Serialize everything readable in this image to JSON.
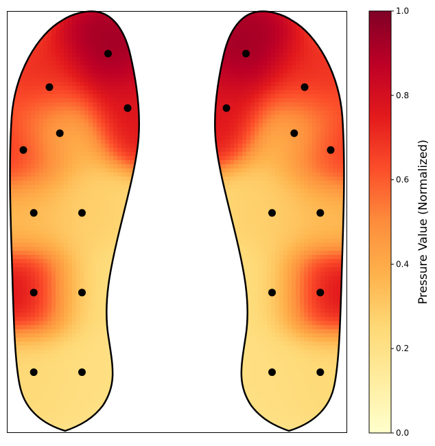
{
  "chart_data": {
    "type": "heatmap",
    "title": "",
    "colorbar": {
      "label": "Pressure Value (Normalized)",
      "ticks": [
        "0.0",
        "0.2",
        "0.4",
        "0.6",
        "0.8",
        "1.0"
      ],
      "range": [
        0,
        1
      ],
      "colormap": [
        "#ffffcc",
        "#ffeda0",
        "#fed976",
        "#feb24c",
        "#fd8d3c",
        "#fc4e2a",
        "#e31a1c",
        "#bd0026",
        "#800026"
      ]
    },
    "sensor_color": "#000000",
    "feet": [
      {
        "name": "left",
        "sensors": [
          {
            "x": 0.75,
            "y": 0.1,
            "value": 0.95
          },
          {
            "x": 0.3,
            "y": 0.18,
            "value": 0.72
          },
          {
            "x": 0.9,
            "y": 0.23,
            "value": 0.78
          },
          {
            "x": 0.38,
            "y": 0.29,
            "value": 0.32
          },
          {
            "x": 0.1,
            "y": 0.33,
            "value": 0.72
          },
          {
            "x": 0.18,
            "y": 0.48,
            "value": 0.35
          },
          {
            "x": 0.55,
            "y": 0.48,
            "value": 0.28
          },
          {
            "x": 0.18,
            "y": 0.67,
            "value": 0.8
          },
          {
            "x": 0.55,
            "y": 0.67,
            "value": 0.22
          },
          {
            "x": 0.18,
            "y": 0.86,
            "value": 0.25
          },
          {
            "x": 0.55,
            "y": 0.86,
            "value": 0.22
          }
        ]
      },
      {
        "name": "right",
        "sensors": [
          {
            "x": 0.25,
            "y": 0.1,
            "value": 0.95
          },
          {
            "x": 0.7,
            "y": 0.18,
            "value": 0.72
          },
          {
            "x": 0.1,
            "y": 0.23,
            "value": 0.78
          },
          {
            "x": 0.62,
            "y": 0.29,
            "value": 0.32
          },
          {
            "x": 0.9,
            "y": 0.33,
            "value": 0.72
          },
          {
            "x": 0.45,
            "y": 0.48,
            "value": 0.28
          },
          {
            "x": 0.82,
            "y": 0.48,
            "value": 0.35
          },
          {
            "x": 0.45,
            "y": 0.67,
            "value": 0.22
          },
          {
            "x": 0.82,
            "y": 0.67,
            "value": 0.8
          },
          {
            "x": 0.45,
            "y": 0.86,
            "value": 0.22
          },
          {
            "x": 0.82,
            "y": 0.86,
            "value": 0.25
          }
        ]
      }
    ]
  }
}
